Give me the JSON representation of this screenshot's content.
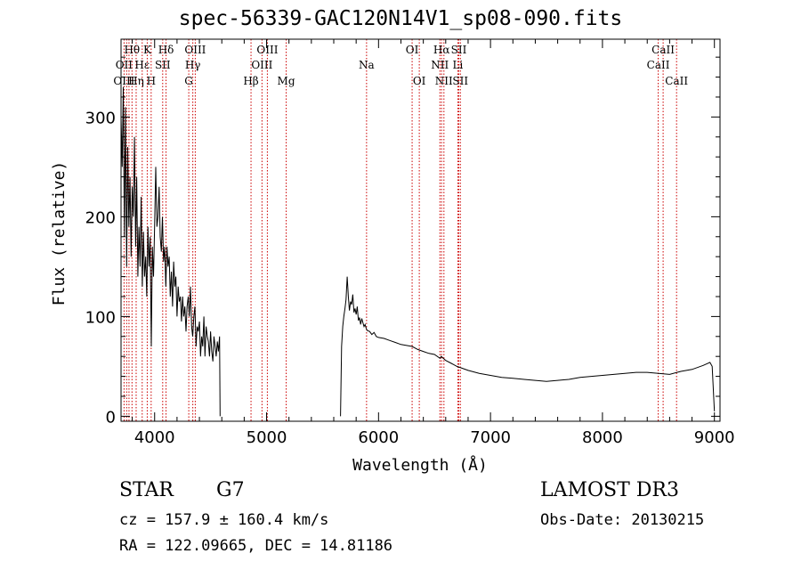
{
  "title": "spec-56339-GAC120N14V1_sp08-090.fits",
  "info": {
    "object_class": "STAR",
    "subclass": "G7",
    "survey": "LAMOST DR3",
    "cz": "cz = 157.9 ± 160.4 km/s",
    "obs_date": "Obs-Date: 20130215",
    "radec": "RA = 122.09665, DEC =  14.81186"
  },
  "chart_data": {
    "type": "line",
    "title": "spec-56339-GAC120N14V1_sp08-090.fits",
    "xlabel": "Wavelength (Å)",
    "ylabel": "Flux (relative)",
    "xlim": [
      3700,
      9050
    ],
    "ylim": [
      -5,
      378
    ],
    "xticks": [
      4000,
      5000,
      6000,
      7000,
      8000,
      9000
    ],
    "yticks": [
      0,
      100,
      200,
      300
    ],
    "grid": false,
    "series": [
      {
        "name": "flux",
        "segments": [
          {
            "x": [
              3700,
              3710,
              3720,
              3730,
              3740,
              3750,
              3760,
              3770,
              3780,
              3790,
              3800,
              3810,
              3820,
              3830,
              3840,
              3850,
              3860,
              3870,
              3880,
              3890,
              3900,
              3910,
              3920,
              3930,
              3940,
              3950,
              3960,
              3970,
              3980,
              3990,
              4000,
              4010,
              4020,
              4030,
              4040,
              4050,
              4060,
              4070,
              4080,
              4090,
              4100,
              4110,
              4120,
              4130,
              4140,
              4150,
              4160,
              4170,
              4180,
              4190,
              4200,
              4210,
              4220,
              4230,
              4240,
              4250,
              4260,
              4270,
              4280,
              4290,
              4300,
              4310,
              4320,
              4330,
              4340,
              4350,
              4360,
              4370,
              4380,
              4390,
              4400,
              4410,
              4420,
              4430,
              4440,
              4450,
              4460,
              4470,
              4480,
              4490,
              4500,
              4510,
              4520,
              4530,
              4540,
              4550,
              4560,
              4570,
              4580,
              4585
            ],
            "y": [
              300,
              250,
              330,
              180,
              310,
              150,
              270,
              190,
              240,
              160,
              230,
              200,
              280,
              170,
              240,
              140,
              190,
              150,
              220,
              130,
              185,
              140,
              160,
              120,
              190,
              150,
              180,
              70,
              170,
              140,
              190,
              250,
              190,
              200,
              230,
              180,
              165,
              200,
              155,
              170,
              130,
              170,
              150,
              160,
              120,
              145,
              110,
              155,
              130,
              140,
              100,
              130,
              115,
              120,
              95,
              120,
              100,
              110,
              85,
              110,
              120,
              100,
              130,
              90,
              80,
              100,
              110,
              70,
              90,
              85,
              95,
              60,
              80,
              70,
              100,
              60,
              90,
              80,
              75,
              60,
              85,
              65,
              55,
              80,
              70,
              60,
              75,
              65,
              80,
              0
            ]
          },
          {
            "x": [
              5660,
              5670,
              5680,
              5690,
              5700,
              5710,
              5720,
              5730,
              5740,
              5750,
              5760,
              5770,
              5780,
              5790,
              5800,
              5810,
              5820,
              5830,
              5840,
              5850,
              5860,
              5870,
              5880,
              5890,
              5900,
              5920,
              5940,
              5960,
              5980,
              6000,
              6050,
              6100,
              6150,
              6200,
              6250,
              6300,
              6350,
              6400,
              6450,
              6500,
              6550,
              6560,
              6600,
              6650,
              6700,
              6750,
              6800,
              6900,
              7000,
              7100,
              7200,
              7300,
              7400,
              7500,
              7600,
              7700,
              7800,
              7900,
              8000,
              8100,
              8200,
              8300,
              8400,
              8500,
              8600,
              8700,
              8800,
              8900,
              8960,
              8980,
              9000
            ],
            "y": [
              0,
              70,
              90,
              100,
              108,
              117,
              140,
              120,
              106,
              115,
              112,
              122,
              104,
              108,
              102,
              110,
              96,
              99,
              92,
              98,
              94,
              90,
              92,
              88,
              86,
              85,
              82,
              84,
              80,
              79,
              78,
              76,
              74,
              72,
              71,
              70,
              67,
              65,
              63,
              62,
              58,
              60,
              56,
              53,
              50,
              48,
              46,
              43,
              41,
              39,
              38,
              37,
              36,
              35,
              36,
              37,
              39,
              40,
              41,
              42,
              43,
              44,
              44,
              43,
              42,
              45,
              47,
              51,
              54,
              50,
              5
            ]
          }
        ]
      }
    ],
    "annotations": [
      {
        "label": "OII",
        "x": 3727,
        "row": 1
      },
      {
        "label": "OIII",
        "x": 3727,
        "row": 2
      },
      {
        "label": "Hθ",
        "x": 3798,
        "row": 0
      },
      {
        "label": "Hε",
        "x": 3889,
        "row": 1
      },
      {
        "label": "Hη",
        "x": 3835,
        "row": 2
      },
      {
        "label": "K",
        "x": 3934,
        "row": 0
      },
      {
        "label": "SII",
        "x": 4072,
        "row": 1
      },
      {
        "label": "H",
        "x": 3969,
        "row": 2
      },
      {
        "label": "Hδ",
        "x": 4102,
        "row": 0
      },
      {
        "label": "OIII",
        "x": 4363,
        "row": 0
      },
      {
        "label": "Hγ",
        "x": 4341,
        "row": 1
      },
      {
        "label": "G",
        "x": 4305,
        "row": 2
      },
      {
        "label": "OIII",
        "x": 5007,
        "row": 0
      },
      {
        "label": "OIII",
        "x": 4959,
        "row": 1
      },
      {
        "label": "Hβ",
        "x": 4861,
        "row": 2
      },
      {
        "label": "Mg",
        "x": 5175,
        "row": 2
      },
      {
        "label": "Na",
        "x": 5893,
        "row": 1
      },
      {
        "label": "OI",
        "x": 6300,
        "row": 0
      },
      {
        "label": "OI",
        "x": 6364,
        "row": 2
      },
      {
        "label": "Hα",
        "x": 6563,
        "row": 0
      },
      {
        "label": "SII",
        "x": 6717,
        "row": 0
      },
      {
        "label": "NII",
        "x": 6548,
        "row": 1
      },
      {
        "label": "Li",
        "x": 6708,
        "row": 1
      },
      {
        "label": "NII",
        "x": 6584,
        "row": 2
      },
      {
        "label": "SII",
        "x": 6731,
        "row": 2
      },
      {
        "label": "CaII",
        "x": 8542,
        "row": 0
      },
      {
        "label": "CaII",
        "x": 8498,
        "row": 1
      },
      {
        "label": "CaII",
        "x": 8662,
        "row": 2
      }
    ],
    "line_markers": [
      3727,
      3750,
      3771,
      3798,
      3835,
      3889,
      3934,
      3969,
      4072,
      4102,
      4305,
      4341,
      4363,
      4861,
      4959,
      5007,
      5175,
      5893,
      6300,
      6364,
      6548,
      6563,
      6584,
      6708,
      6717,
      6731,
      8498,
      8542,
      8662
    ]
  }
}
